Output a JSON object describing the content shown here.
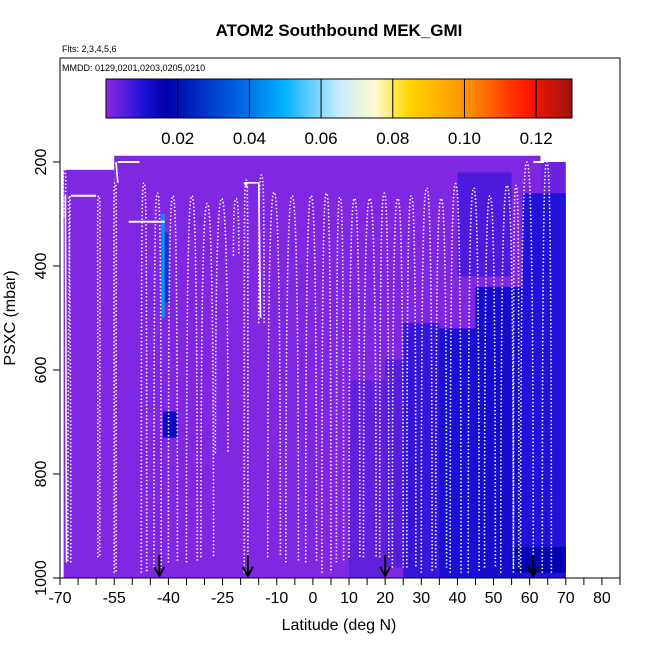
{
  "chart_data": {
    "type": "heatmap",
    "title": "ATOM2 Southbound MEK_GMI",
    "flights_label": "Flts: 2,3,4,5,6",
    "dates_label": "MMDD: 0129,0201,0203,0205,0210",
    "xlabel": "Latitude (deg N)",
    "ylabel": "PSXC (mbar)",
    "xlim": [
      -70,
      85
    ],
    "ylim": [
      1000,
      0
    ],
    "x_ticks": [
      -70,
      -55,
      -40,
      -25,
      -10,
      0,
      10,
      20,
      30,
      40,
      50,
      60,
      70,
      80
    ],
    "x_tick_labels": [
      "-70",
      "-55",
      "-40",
      "-25",
      "-10",
      "0",
      "10",
      "20",
      "30",
      "40",
      "50",
      "60",
      "70",
      "80"
    ],
    "x_minor_ticks": [
      -65,
      -60,
      -50,
      -45,
      -35,
      -30,
      -20,
      -15,
      -5,
      5,
      15,
      25,
      35,
      45,
      55,
      65,
      75,
      85
    ],
    "y_ticks": [
      200,
      400,
      600,
      800,
      1000
    ],
    "y_tick_labels": [
      "200",
      "400",
      "600",
      "800",
      "1000"
    ],
    "colorbar": {
      "min": 0.0,
      "max": 0.13,
      "ticks": [
        0.02,
        0.04,
        0.06,
        0.08,
        0.1,
        0.12
      ],
      "tick_labels": [
        "0.02",
        "0.04",
        "0.06",
        "0.08",
        "0.10",
        "0.12"
      ],
      "colors": [
        "#8a2be2",
        "#1e10d6",
        "#0000a8",
        "#0060e0",
        "#00b0ff",
        "#c8ecff",
        "#fffacd",
        "#ffd700",
        "#ff8c00",
        "#ff1a00",
        "#a01010"
      ],
      "color_positions": [
        0.0,
        0.08,
        0.13,
        0.28,
        0.38,
        0.5,
        0.58,
        0.65,
        0.78,
        0.9,
        1.0
      ]
    },
    "field": {
      "background_value": 0.001,
      "regions": [
        {
          "x": [
            -69,
            -55
          ],
          "p": [
            215,
            1000
          ],
          "v": 0.001
        },
        {
          "x": [
            -55,
            63
          ],
          "p": [
            188,
            1000
          ],
          "v": 0.001
        },
        {
          "x": [
            63,
            70
          ],
          "p": [
            200,
            1000
          ],
          "v": 0.003
        },
        {
          "x": [
            -42,
            -41
          ],
          "p": [
            300,
            500
          ],
          "v": 0.045
        },
        {
          "x": [
            -41,
            -40
          ],
          "p": [
            335,
            470
          ],
          "v": 0.03
        },
        {
          "x": [
            -41.5,
            -37.5
          ],
          "p": [
            680,
            730
          ],
          "v": 0.014
        },
        {
          "x": [
            20,
            25
          ],
          "p": [
            580,
            980
          ],
          "v": 0.005
        },
        {
          "x": [
            25,
            35
          ],
          "p": [
            510,
            1000
          ],
          "v": 0.008
        },
        {
          "x": [
            35,
            45
          ],
          "p": [
            520,
            1000
          ],
          "v": 0.011
        },
        {
          "x": [
            45,
            58
          ],
          "p": [
            440,
            1000
          ],
          "v": 0.012
        },
        {
          "x": [
            40,
            55
          ],
          "p": [
            220,
            420
          ],
          "v": 0.006
        },
        {
          "x": [
            58,
            70
          ],
          "p": [
            260,
            1000
          ],
          "v": 0.01
        },
        {
          "x": [
            55,
            70
          ],
          "p": [
            940,
            990
          ],
          "v": 0.016
        },
        {
          "x": [
            10,
            20
          ],
          "p": [
            620,
            1000
          ],
          "v": 0.004
        }
      ]
    },
    "profiles": [
      {
        "x0": -69,
        "x1": -68.5,
        "top": 215,
        "bottom": 305,
        "solid": false
      },
      {
        "x0": -67,
        "x1": -67.8,
        "top": 265,
        "bottom": 970,
        "solid": false
      },
      {
        "x0": -67,
        "x1": -60,
        "top": 265,
        "bottom": 265,
        "solid": true
      },
      {
        "x0": -59.5,
        "x1": -59,
        "top": 265,
        "bottom": 960,
        "solid": false
      },
      {
        "x0": -55,
        "x1": -54.5,
        "top": 240,
        "bottom": 990,
        "solid": false
      },
      {
        "x0": -54,
        "x1": -48,
        "top": 200,
        "bottom": 200,
        "solid": true
      },
      {
        "x0": -47.5,
        "x1": -46,
        "top": 240,
        "bottom": 990,
        "solid": false
      },
      {
        "x0": -51,
        "x1": -41,
        "top": 315,
        "bottom": 315,
        "solid": true
      },
      {
        "x0": -44,
        "x1": -42,
        "top": 260,
        "bottom": 980,
        "solid": false
      },
      {
        "x0": -40,
        "x1": -37.5,
        "top": 265,
        "bottom": 970,
        "solid": false
      },
      {
        "x0": -35,
        "x1": -32,
        "top": 265,
        "bottom": 970,
        "solid": false
      },
      {
        "x0": -31,
        "x1": -27.5,
        "top": 280,
        "bottom": 960,
        "solid": false
      },
      {
        "x0": -27,
        "x1": -23.5,
        "top": 270,
        "bottom": 760,
        "solid": false
      },
      {
        "x0": -22,
        "x1": -20.5,
        "top": 270,
        "bottom": 380,
        "solid": false
      },
      {
        "x0": -19,
        "x1": -18,
        "top": 235,
        "bottom": 990,
        "solid": false
      },
      {
        "x0": -15,
        "x1": -13.5,
        "top": 225,
        "bottom": 510,
        "solid": false
      },
      {
        "x0": -12.5,
        "x1": -9,
        "top": 258,
        "bottom": 960,
        "solid": false
      },
      {
        "x0": -7.5,
        "x1": -4,
        "top": 265,
        "bottom": 970,
        "solid": false
      },
      {
        "x0": -2,
        "x1": 1,
        "top": 265,
        "bottom": 970,
        "solid": false
      },
      {
        "x0": 2.5,
        "x1": 5,
        "top": 260,
        "bottom": 990,
        "solid": false
      },
      {
        "x0": 6.5,
        "x1": 8.5,
        "top": 268,
        "bottom": 970,
        "solid": false
      },
      {
        "x0": 10,
        "x1": 13,
        "top": 270,
        "bottom": 960,
        "solid": false
      },
      {
        "x0": 14,
        "x1": 17.5,
        "top": 270,
        "bottom": 960,
        "solid": false
      },
      {
        "x0": 18.5,
        "x1": 21,
        "top": 260,
        "bottom": 960,
        "solid": false
      },
      {
        "x0": 22,
        "x1": 25,
        "top": 270,
        "bottom": 980,
        "solid": false
      },
      {
        "x0": 26,
        "x1": 28.5,
        "top": 265,
        "bottom": 980,
        "solid": false
      },
      {
        "x0": 30,
        "x1": 33,
        "top": 250,
        "bottom": 990,
        "solid": false
      },
      {
        "x0": 34,
        "x1": 37,
        "top": 270,
        "bottom": 980,
        "solid": false
      },
      {
        "x0": 38,
        "x1": 41,
        "top": 242,
        "bottom": 990,
        "solid": false
      },
      {
        "x0": 43,
        "x1": 46,
        "top": 250,
        "bottom": 990,
        "solid": false
      },
      {
        "x0": 47.5,
        "x1": 50.5,
        "top": 265,
        "bottom": 980,
        "solid": false
      },
      {
        "x0": 52,
        "x1": 55.5,
        "top": 245,
        "bottom": 990,
        "solid": false
      },
      {
        "x0": 55.5,
        "x1": 57,
        "top": 245,
        "bottom": 980,
        "solid": false
      },
      {
        "x0": 57.5,
        "x1": 61,
        "top": 200,
        "bottom": 990,
        "solid": false
      },
      {
        "x0": 61,
        "x1": 64,
        "top": 200,
        "bottom": 200,
        "solid": true
      },
      {
        "x0": 63.5,
        "x1": 66,
        "top": 200,
        "bottom": 990,
        "solid": false
      }
    ],
    "solid_profile_segments": [
      {
        "x": [
          -68.5,
          -68.2
        ],
        "p": [
          265,
          970
        ]
      },
      {
        "x": [
          -54.5,
          -54
        ],
        "p": [
          200,
          240
        ]
      },
      {
        "x": [
          -19,
          -18
        ],
        "p": [
          240,
          250
        ]
      },
      {
        "x": [
          -19,
          -15
        ],
        "p": [
          240,
          240
        ]
      },
      {
        "x": [
          -15,
          -14.5
        ],
        "p": [
          240,
          500
        ]
      }
    ],
    "arrows": [
      -42.5,
      -18,
      20,
      61
    ]
  }
}
